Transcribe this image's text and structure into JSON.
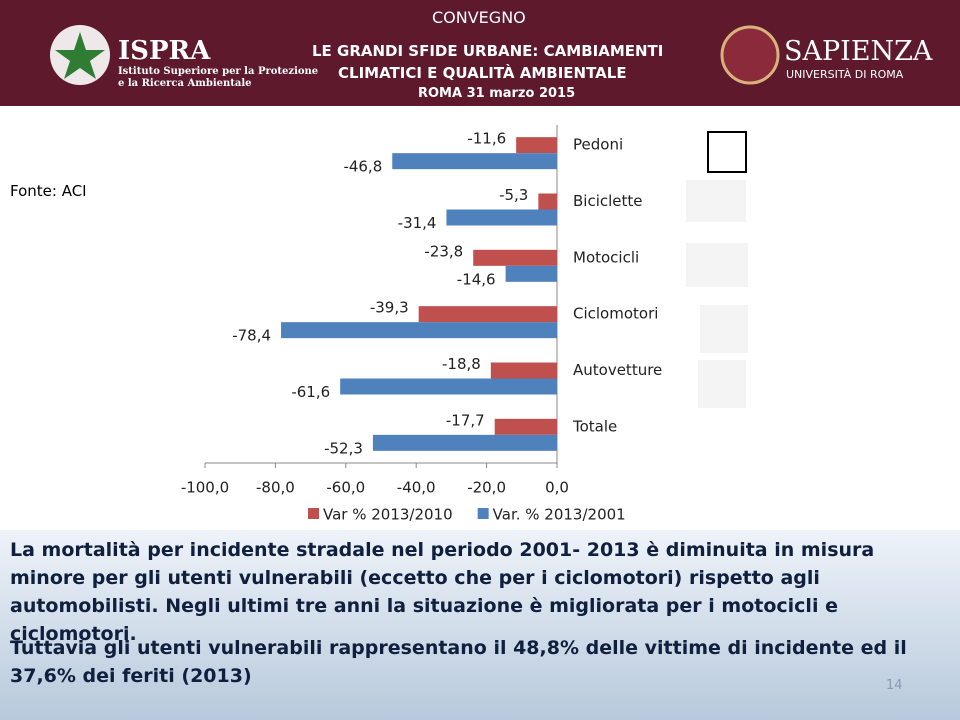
{
  "header": {
    "org": "ISPRA",
    "org_line1": "Istituto Superiore per la Protezione",
    "org_line2": "e la Ricerca Ambientale",
    "event": "CONVEGNO",
    "title_line1": "LE GRANDI SFIDE URBANE: CAMBIAMENTI",
    "title_line2": "CLIMATICI E QUALITÀ AMBIENTALE",
    "date": "ROMA 31 marzo 2015",
    "university": "SAPIENZA",
    "university_sub": "UNIVERSITÀ DI ROMA"
  },
  "source": "Fonte: ACI",
  "chart_data": {
    "type": "hbar",
    "categories": [
      "Pedoni",
      "Biciclette",
      "Motocicli",
      "Ciclomotori",
      "Autovetture",
      "Totale"
    ],
    "series": [
      {
        "name": "Var % 2013/2010",
        "color": "#c0504d",
        "values": [
          -11.6,
          -5.3,
          -23.8,
          -39.3,
          -18.8,
          -17.7
        ],
        "value_labels": [
          "-11,6",
          "-5,3",
          "-23,8",
          "-39,3",
          "-18,8",
          "-17,7"
        ]
      },
      {
        "name": "Var. % 2013/2001",
        "color": "#4f81bd",
        "values": [
          -46.8,
          -31.4,
          -14.6,
          -78.4,
          -61.6,
          -52.3
        ],
        "value_labels": [
          "-46,8",
          "-31,4",
          "-14,6",
          "-78,4",
          "-61,6",
          "-52,3"
        ]
      }
    ],
    "xlim": [
      -100,
      0
    ],
    "xticks": [
      {
        "value": -100,
        "label": "-100,0"
      },
      {
        "value": -80,
        "label": "-80,0"
      },
      {
        "value": -60,
        "label": "-60,0"
      },
      {
        "value": -40,
        "label": "-40,0"
      },
      {
        "value": -20,
        "label": "-20,0"
      },
      {
        "value": 0,
        "label": "0,0"
      }
    ],
    "legend": "bottom"
  },
  "text": {
    "paragraph1": "La mortalità per incidente stradale nel periodo 2001- 2013 è diminuita in misura minore per gli utenti vulnerabili (eccetto che per i ciclomotori) rispetto agli automobilisti. Negli ultimi tre anni la situazione è migliorata per i motocicli e ciclomotori.",
    "paragraph2": "Tuttavia gli utenti vulnerabili rappresentano il 48,8% delle vittime di incidente ed il 37,6% dei feriti (2013)",
    "page": "14"
  }
}
